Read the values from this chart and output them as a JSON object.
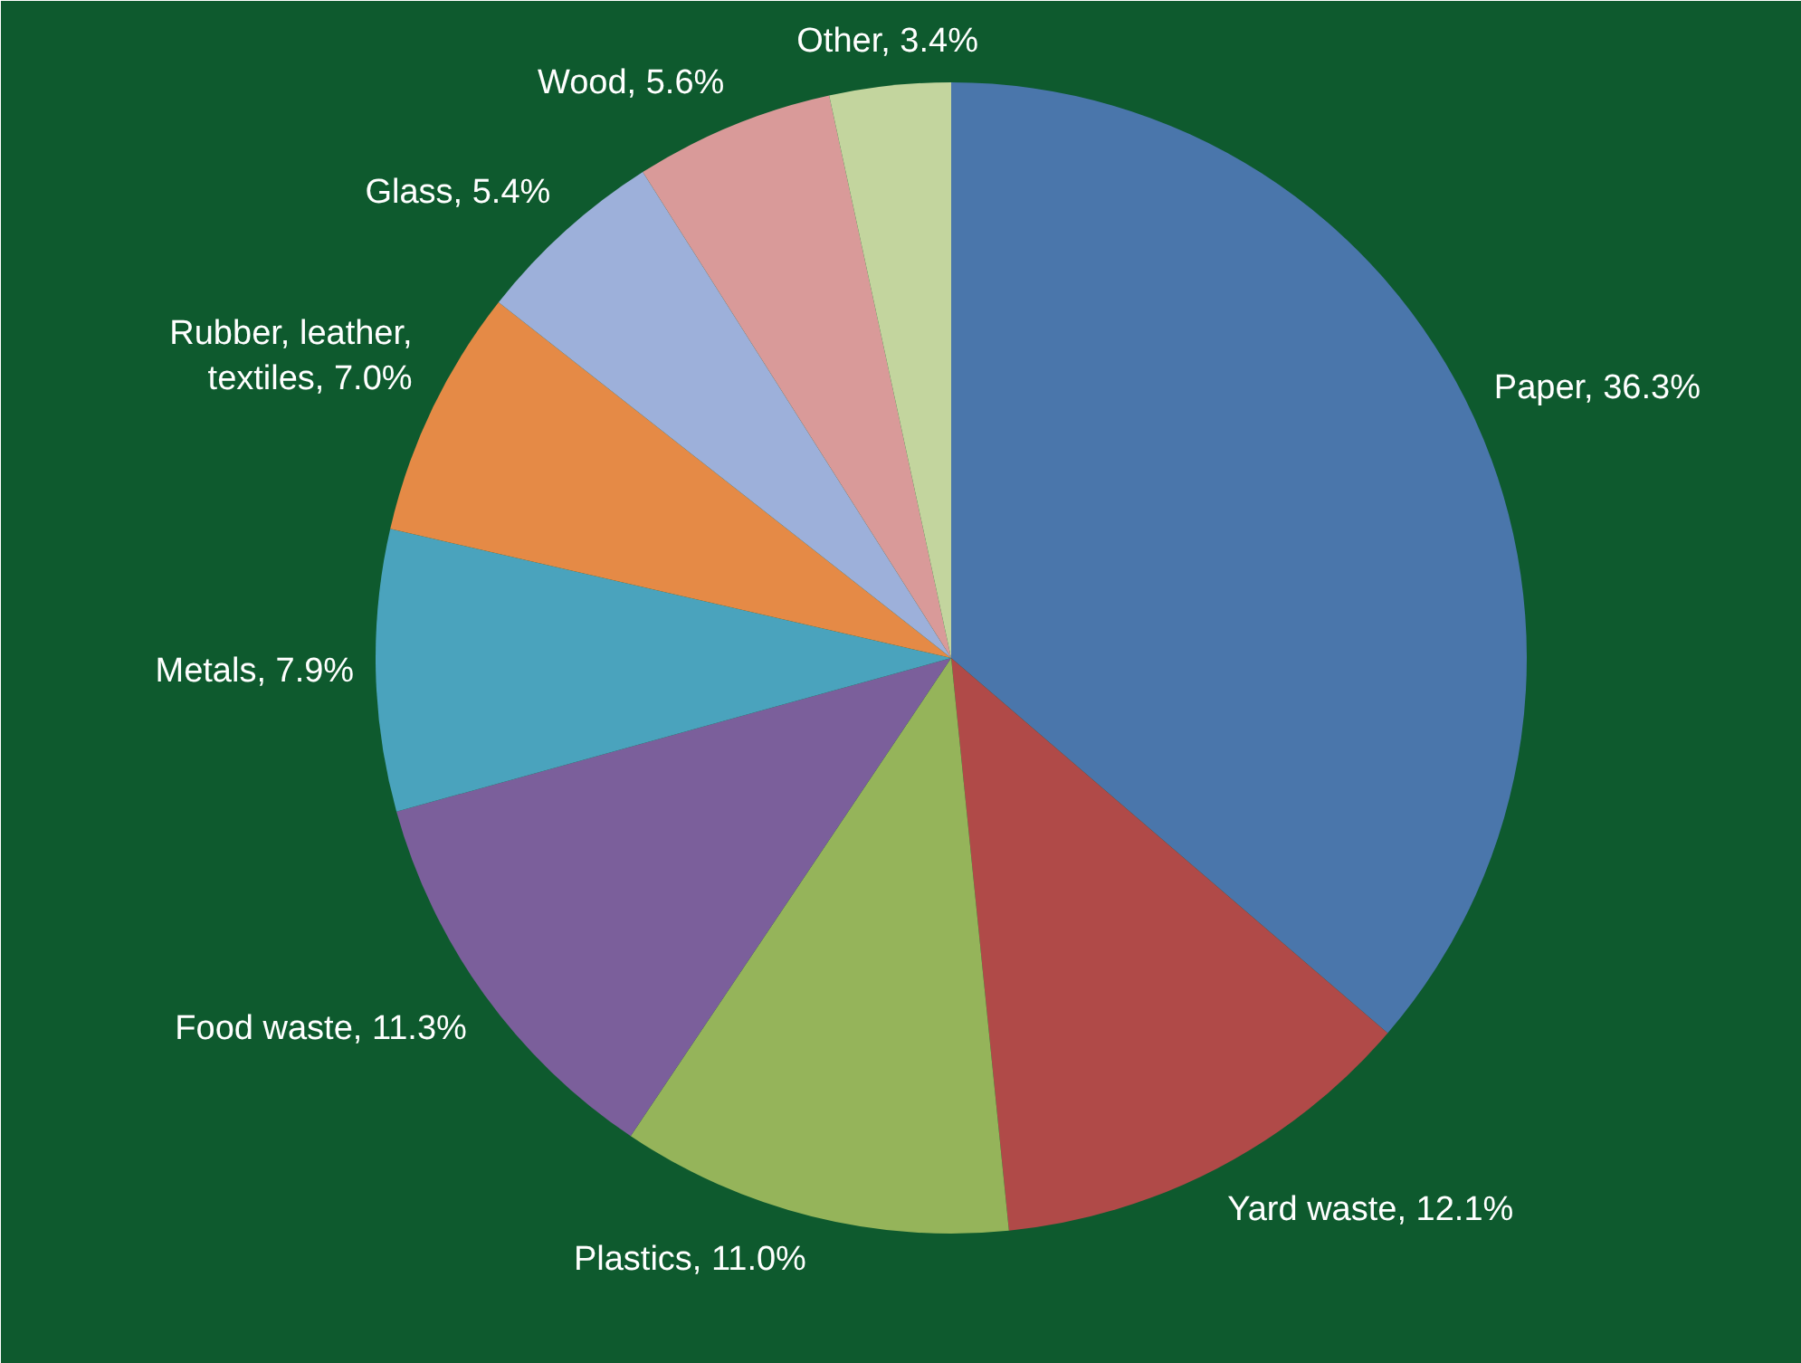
{
  "chart_data": {
    "type": "pie",
    "categories": [
      "Paper",
      "Yard waste",
      "Plastics",
      "Food waste",
      "Metals",
      "Rubber, leather, textiles",
      "Glass",
      "Wood",
      "Other"
    ],
    "values": [
      36.3,
      12.1,
      11.0,
      11.3,
      7.9,
      7.0,
      5.4,
      5.6,
      3.4
    ],
    "colors": [
      "#4a76ab",
      "#b04a48",
      "#95b45a",
      "#7b5f9b",
      "#4aa3bd",
      "#e58a46",
      "#9db0da",
      "#d99a99",
      "#c3d59e"
    ],
    "value_labels": [
      "36.3%",
      "12.1%",
      "11.0%",
      "11.3%",
      "7.9%",
      "7.0%",
      "5.4%",
      "5.6%",
      "3.4%"
    ]
  }
}
